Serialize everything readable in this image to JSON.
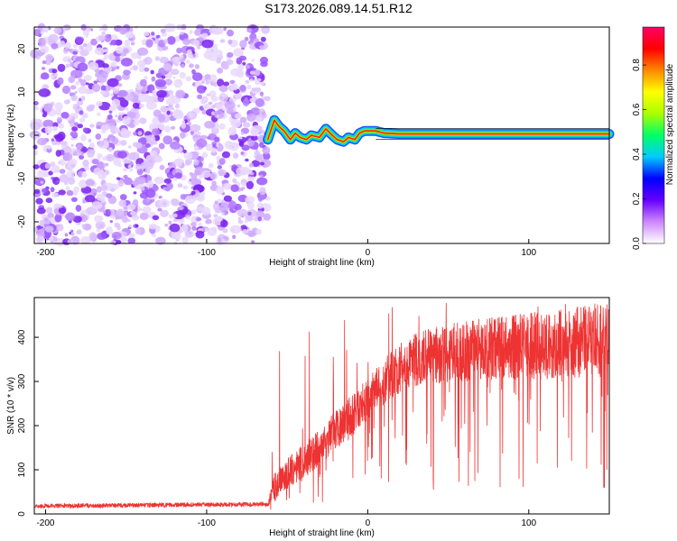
{
  "title": "S173.2026.089.14.51.R12",
  "chart_data": [
    {
      "type": "heatmap",
      "xlabel": "Height of straight line (km)",
      "ylabel": "Frequency (Hz)",
      "xlim": [
        -207,
        150
      ],
      "ylim": [
        -25,
        25
      ],
      "xticks": [
        -200,
        -100,
        0,
        100
      ],
      "yticks": [
        -20,
        -10,
        0,
        10,
        20
      ],
      "colorbar": {
        "label": "Normalized spectral amplitude",
        "range": [
          0,
          0.97
        ],
        "ticks": [
          "0.0",
          "0.2",
          "0.4",
          "0.6",
          "0.8"
        ],
        "colors": [
          "#ffffff",
          "#cc88ff",
          "#6600ff",
          "#0000ff",
          "#00ccff",
          "#00ff66",
          "#aaff00",
          "#ffff00",
          "#ff8800",
          "#ff0000",
          "#ff0066"
        ]
      },
      "noise_region_x": [
        -207,
        -62
      ],
      "signal_track": {
        "x": [
          -62,
          -58,
          -55,
          -52,
          -48,
          -45,
          -42,
          -38,
          -35,
          -30,
          -26,
          -22,
          -19,
          -15,
          -12,
          -8,
          -5,
          -2,
          0,
          5,
          10,
          20,
          50,
          100,
          150
        ],
        "frequency": [
          -1.0,
          3.5,
          2.0,
          1.0,
          -1.0,
          0.5,
          -0.5,
          -1.0,
          0.0,
          -0.5,
          1.5,
          0.0,
          -1.0,
          -1.5,
          -0.5,
          -1.0,
          0.5,
          1.0,
          1.0,
          1.0,
          0.5,
          0.3,
          0.3,
          0.3,
          0.3
        ]
      }
    },
    {
      "type": "line",
      "xlabel": "Height of straight line (km)",
      "ylabel": "SNR (10 * v/v)",
      "xlim": [
        -207,
        150
      ],
      "ylim": [
        0,
        490
      ],
      "xticks": [
        -200,
        -100,
        0,
        100
      ],
      "yticks": [
        0,
        100,
        200,
        300,
        400
      ],
      "color": "#ee3333",
      "envelope": {
        "x": [
          -207,
          -62,
          -58,
          -50,
          -40,
          -30,
          -20,
          -10,
          0,
          10,
          20,
          30,
          50,
          80,
          100,
          120,
          150
        ],
        "median": [
          18,
          22,
          60,
          90,
          120,
          150,
          190,
          220,
          260,
          300,
          330,
          350,
          365,
          375,
          380,
          385,
          395
        ],
        "spread": [
          5,
          5,
          40,
          45,
          50,
          55,
          60,
          60,
          60,
          65,
          70,
          75,
          85,
          90,
          95,
          100,
          110
        ]
      }
    }
  ]
}
